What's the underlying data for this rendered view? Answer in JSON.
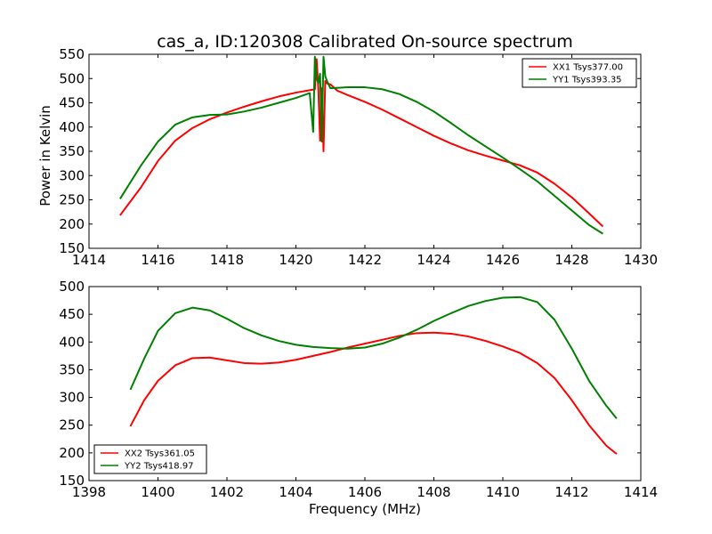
{
  "chart_data": [
    {
      "type": "line",
      "title": "cas_a, ID:120308 Calibrated On-source spectrum",
      "xlabel": "",
      "ylabel": "Power in Kelvin",
      "xlim": [
        1414,
        1430
      ],
      "ylim": [
        150,
        550
      ],
      "xticks": [
        "1414",
        "1416",
        "1418",
        "1420",
        "1422",
        "1424",
        "1426",
        "1428",
        "1430"
      ],
      "yticks": [
        "150",
        "200",
        "250",
        "300",
        "350",
        "400",
        "450",
        "500",
        "550"
      ],
      "legend_position": "top-right",
      "series": [
        {
          "name": "XX1 Tsys377.00",
          "color": "#ff0000",
          "x": [
            1414.9,
            1415.5,
            1416.0,
            1416.5,
            1417.0,
            1417.5,
            1418.0,
            1418.5,
            1419.0,
            1419.5,
            1420.0,
            1420.4,
            1420.55,
            1420.6,
            1420.65,
            1420.7,
            1420.75,
            1420.8,
            1420.85,
            1420.9,
            1421.0,
            1421.2,
            1421.5,
            1422.0,
            1422.5,
            1423.0,
            1423.5,
            1424.0,
            1424.5,
            1425.0,
            1425.5,
            1426.0,
            1426.5,
            1427.0,
            1427.5,
            1428.0,
            1428.5,
            1428.9
          ],
          "y": [
            218,
            275,
            330,
            372,
            398,
            416,
            430,
            442,
            453,
            463,
            471,
            476,
            478,
            540,
            480,
            372,
            480,
            350,
            495,
            490,
            488,
            475,
            466,
            452,
            436,
            418,
            400,
            382,
            366,
            352,
            341,
            331,
            321,
            306,
            283,
            255,
            222,
            195
          ]
        },
        {
          "name": "YY1 Tsys393.35",
          "color": "#008000",
          "x": [
            1414.9,
            1415.5,
            1416.0,
            1416.5,
            1417.0,
            1417.5,
            1418.0,
            1418.5,
            1419.0,
            1419.5,
            1420.0,
            1420.4,
            1420.5,
            1420.55,
            1420.6,
            1420.65,
            1420.7,
            1420.75,
            1420.8,
            1420.85,
            1420.9,
            1421.0,
            1421.5,
            1422.0,
            1422.5,
            1423.0,
            1423.5,
            1424.0,
            1424.5,
            1425.0,
            1425.5,
            1426.0,
            1426.5,
            1427.0,
            1427.5,
            1428.0,
            1428.5,
            1428.9
          ],
          "y": [
            252,
            320,
            370,
            405,
            420,
            425,
            426,
            432,
            440,
            450,
            460,
            470,
            390,
            545,
            500,
            490,
            510,
            370,
            545,
            505,
            495,
            480,
            482,
            482,
            478,
            468,
            452,
            432,
            408,
            383,
            360,
            337,
            313,
            288,
            258,
            228,
            198,
            180
          ]
        }
      ]
    },
    {
      "type": "line",
      "title": "",
      "xlabel": "Frequency (MHz)",
      "ylabel": "",
      "xlim": [
        1398,
        1414
      ],
      "ylim": [
        150,
        500
      ],
      "xticks": [
        "1398",
        "1400",
        "1402",
        "1404",
        "1406",
        "1408",
        "1410",
        "1412",
        "1414"
      ],
      "yticks": [
        "150",
        "200",
        "250",
        "300",
        "350",
        "400",
        "450",
        "500"
      ],
      "legend_position": "bottom-left",
      "series": [
        {
          "name": "XX2 Tsys361.05",
          "color": "#ff0000",
          "x": [
            1399.2,
            1399.6,
            1400.0,
            1400.5,
            1401.0,
            1401.5,
            1402.0,
            1402.5,
            1403.0,
            1403.5,
            1404.0,
            1404.5,
            1405.0,
            1405.5,
            1406.0,
            1406.5,
            1407.0,
            1407.5,
            1408.0,
            1408.5,
            1409.0,
            1409.5,
            1410.0,
            1410.5,
            1411.0,
            1411.5,
            1412.0,
            1412.5,
            1413.0,
            1413.3
          ],
          "y": [
            248,
            295,
            330,
            358,
            371,
            372,
            367,
            362,
            361,
            363,
            368,
            375,
            382,
            390,
            397,
            404,
            411,
            416,
            417,
            415,
            410,
            402,
            392,
            380,
            362,
            335,
            295,
            250,
            213,
            198
          ]
        },
        {
          "name": "YY2 Tsys418.97",
          "color": "#008000",
          "x": [
            1399.2,
            1399.6,
            1400.0,
            1400.5,
            1401.0,
            1401.5,
            1402.0,
            1402.5,
            1403.0,
            1403.5,
            1404.0,
            1404.5,
            1405.0,
            1405.5,
            1406.0,
            1406.5,
            1407.0,
            1407.5,
            1408.0,
            1408.5,
            1409.0,
            1409.5,
            1410.0,
            1410.5,
            1411.0,
            1411.5,
            1412.0,
            1412.5,
            1413.0,
            1413.3
          ],
          "y": [
            314,
            370,
            420,
            452,
            462,
            457,
            442,
            425,
            412,
            402,
            395,
            391,
            389,
            388,
            390,
            397,
            408,
            422,
            438,
            452,
            465,
            474,
            480,
            481,
            472,
            440,
            388,
            330,
            285,
            262
          ]
        }
      ]
    }
  ]
}
